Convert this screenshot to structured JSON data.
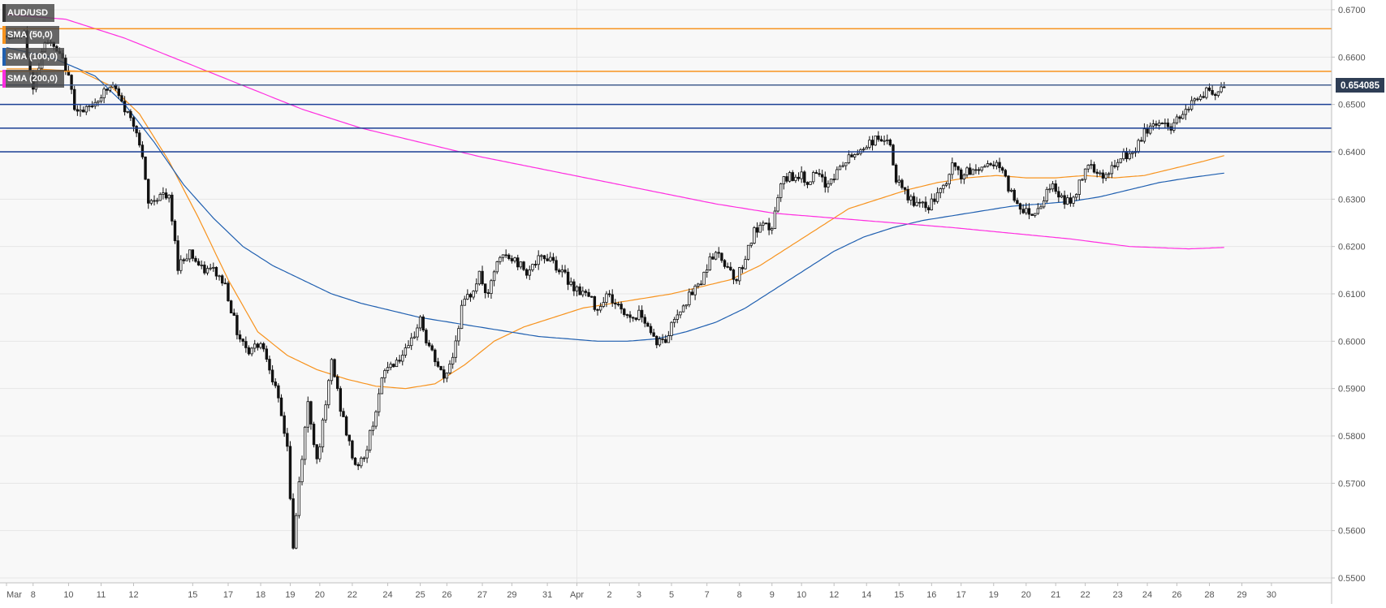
{
  "chart_data": {
    "type": "candlestick",
    "symbol": "AUD/USD",
    "indicators": [
      {
        "name": "SMA (50,0)",
        "color": "#f7931e"
      },
      {
        "name": "SMA (100,0)",
        "color": "#1f5fb0"
      },
      {
        "name": "SMA (200,0)",
        "color": "#ff2de0"
      }
    ],
    "last_price": "0.654085",
    "ylim": [
      0.55,
      0.67
    ],
    "y_ticks": [
      "0.6700",
      "0.6600",
      "0.6500",
      "0.6400",
      "0.6300",
      "0.6200",
      "0.6100",
      "0.6000",
      "0.5900",
      "0.5800",
      "0.5700",
      "0.5600",
      "0.5500"
    ],
    "x_ticks": [
      {
        "label": "Mar",
        "bar": 0
      },
      {
        "label": "8",
        "bar": 9
      },
      {
        "label": "10",
        "bar": 21
      },
      {
        "label": "11",
        "bar": 32
      },
      {
        "label": "12",
        "bar": 43
      },
      {
        "label": "15",
        "bar": 63
      },
      {
        "label": "17",
        "bar": 75
      },
      {
        "label": "18",
        "bar": 86
      },
      {
        "label": "19",
        "bar": 96
      },
      {
        "label": "20",
        "bar": 106
      },
      {
        "label": "22",
        "bar": 117
      },
      {
        "label": "24",
        "bar": 129
      },
      {
        "label": "25",
        "bar": 140
      },
      {
        "label": "26",
        "bar": 149
      },
      {
        "label": "27",
        "bar": 161
      },
      {
        "label": "29",
        "bar": 171
      },
      {
        "label": "31",
        "bar": 183
      },
      {
        "label": "Apr",
        "bar": 193
      },
      {
        "label": "2",
        "bar": 204
      },
      {
        "label": "3",
        "bar": 214
      },
      {
        "label": "5",
        "bar": 225
      },
      {
        "label": "7",
        "bar": 237
      },
      {
        "label": "8",
        "bar": 248
      },
      {
        "label": "9",
        "bar": 259
      },
      {
        "label": "10",
        "bar": 269
      },
      {
        "label": "12",
        "bar": 280
      },
      {
        "label": "14",
        "bar": 291
      },
      {
        "label": "15",
        "bar": 302
      },
      {
        "label": "16",
        "bar": 313
      },
      {
        "label": "17",
        "bar": 323
      },
      {
        "label": "19",
        "bar": 334
      },
      {
        "label": "20",
        "bar": 345
      },
      {
        "label": "21",
        "bar": 355
      },
      {
        "label": "22",
        "bar": 365
      },
      {
        "label": "23",
        "bar": 376
      },
      {
        "label": "24",
        "bar": 386
      },
      {
        "label": "26",
        "bar": 396
      },
      {
        "label": "28",
        "bar": 407
      },
      {
        "label": "29",
        "bar": 418
      },
      {
        "label": "30",
        "bar": 428
      }
    ],
    "horizontal_levels": [
      {
        "value": 0.666,
        "color": "#f7931e"
      },
      {
        "value": 0.657,
        "color": "#f7931e"
      },
      {
        "value": 0.6541,
        "color": "#44608f"
      },
      {
        "value": 0.65,
        "color": "#1a3f94"
      },
      {
        "value": 0.645,
        "color": "#1a3f94"
      },
      {
        "value": 0.64,
        "color": "#1a3f94"
      }
    ],
    "anchors": {
      "close": [
        [
          0,
          0.6645
        ],
        [
          6,
          0.6645
        ],
        [
          9,
          0.653
        ],
        [
          13,
          0.664
        ],
        [
          17,
          0.661
        ],
        [
          20,
          0.658
        ],
        [
          23,
          0.65
        ],
        [
          26,
          0.648
        ],
        [
          32,
          0.652
        ],
        [
          36,
          0.654
        ],
        [
          40,
          0.649
        ],
        [
          44,
          0.645
        ],
        [
          46,
          0.638
        ],
        [
          48,
          0.629
        ],
        [
          52,
          0.631
        ],
        [
          55,
          0.63
        ],
        [
          58,
          0.616
        ],
        [
          62,
          0.619
        ],
        [
          66,
          0.615
        ],
        [
          70,
          0.615
        ],
        [
          74,
          0.612
        ],
        [
          78,
          0.602
        ],
        [
          82,
          0.598
        ],
        [
          86,
          0.6
        ],
        [
          89,
          0.595
        ],
        [
          92,
          0.587
        ],
        [
          95,
          0.578
        ],
        [
          97,
          0.556
        ],
        [
          99,
          0.57
        ],
        [
          102,
          0.587
        ],
        [
          105,
          0.575
        ],
        [
          108,
          0.586
        ],
        [
          110,
          0.596
        ],
        [
          113,
          0.586
        ],
        [
          116,
          0.578
        ],
        [
          118,
          0.574
        ],
        [
          121,
          0.575
        ],
        [
          124,
          0.583
        ],
        [
          128,
          0.594
        ],
        [
          132,
          0.596
        ],
        [
          136,
          0.598
        ],
        [
          140,
          0.605
        ],
        [
          142,
          0.6
        ],
        [
          145,
          0.596
        ],
        [
          148,
          0.592
        ],
        [
          151,
          0.597
        ],
        [
          154,
          0.607
        ],
        [
          157,
          0.61
        ],
        [
          160,
          0.614
        ],
        [
          163,
          0.609
        ],
        [
          165,
          0.615
        ],
        [
          168,
          0.618
        ],
        [
          172,
          0.617
        ],
        [
          176,
          0.615
        ],
        [
          180,
          0.617
        ],
        [
          184,
          0.618
        ],
        [
          187,
          0.615
        ],
        [
          190,
          0.613
        ],
        [
          193,
          0.611
        ],
        [
          196,
          0.61
        ],
        [
          200,
          0.607
        ],
        [
          203,
          0.61
        ],
        [
          206,
          0.608
        ],
        [
          209,
          0.606
        ],
        [
          212,
          0.605
        ],
        [
          215,
          0.606
        ],
        [
          218,
          0.602
        ],
        [
          220,
          0.6
        ],
        [
          223,
          0.6
        ],
        [
          226,
          0.605
        ],
        [
          229,
          0.608
        ],
        [
          232,
          0.61
        ],
        [
          234,
          0.612
        ],
        [
          236,
          0.614
        ],
        [
          238,
          0.618
        ],
        [
          241,
          0.618
        ],
        [
          244,
          0.616
        ],
        [
          247,
          0.613
        ],
        [
          250,
          0.618
        ],
        [
          253,
          0.623
        ],
        [
          256,
          0.624
        ],
        [
          259,
          0.624
        ],
        [
          262,
          0.633
        ],
        [
          265,
          0.635
        ],
        [
          268,
          0.635
        ],
        [
          271,
          0.634
        ],
        [
          274,
          0.635
        ],
        [
          277,
          0.633
        ],
        [
          280,
          0.635
        ],
        [
          284,
          0.638
        ],
        [
          288,
          0.64
        ],
        [
          292,
          0.642
        ],
        [
          296,
          0.643
        ],
        [
          299,
          0.641
        ],
        [
          301,
          0.634
        ],
        [
          304,
          0.631
        ],
        [
          308,
          0.629
        ],
        [
          311,
          0.628
        ],
        [
          314,
          0.63
        ],
        [
          317,
          0.632
        ],
        [
          320,
          0.637
        ],
        [
          323,
          0.635
        ],
        [
          327,
          0.636
        ],
        [
          331,
          0.637
        ],
        [
          335,
          0.638
        ],
        [
          338,
          0.634
        ],
        [
          341,
          0.63
        ],
        [
          344,
          0.628
        ],
        [
          347,
          0.627
        ],
        [
          350,
          0.629
        ],
        [
          353,
          0.633
        ],
        [
          356,
          0.631
        ],
        [
          360,
          0.629
        ],
        [
          363,
          0.633
        ],
        [
          366,
          0.638
        ],
        [
          369,
          0.636
        ],
        [
          372,
          0.635
        ],
        [
          375,
          0.637
        ],
        [
          378,
          0.639
        ],
        [
          382,
          0.64
        ],
        [
          385,
          0.644
        ],
        [
          388,
          0.646
        ],
        [
          391,
          0.646
        ],
        [
          394,
          0.645
        ],
        [
          397,
          0.648
        ],
        [
          400,
          0.65
        ],
        [
          403,
          0.651
        ],
        [
          406,
          0.653
        ],
        [
          409,
          0.651
        ],
        [
          412,
          0.6541
        ]
      ],
      "sma50": [
        [
          0,
          0.6575
        ],
        [
          10,
          0.6575
        ],
        [
          25,
          0.657
        ],
        [
          35,
          0.654
        ],
        [
          45,
          0.648
        ],
        [
          55,
          0.638
        ],
        [
          65,
          0.626
        ],
        [
          75,
          0.613
        ],
        [
          85,
          0.602
        ],
        [
          95,
          0.597
        ],
        [
          105,
          0.594
        ],
        [
          115,
          0.592
        ],
        [
          125,
          0.5905
        ],
        [
          135,
          0.59
        ],
        [
          145,
          0.591
        ],
        [
          155,
          0.595
        ],
        [
          165,
          0.6
        ],
        [
          175,
          0.603
        ],
        [
          185,
          0.605
        ],
        [
          195,
          0.607
        ],
        [
          205,
          0.608
        ],
        [
          215,
          0.609
        ],
        [
          225,
          0.61
        ],
        [
          235,
          0.6115
        ],
        [
          245,
          0.613
        ],
        [
          255,
          0.616
        ],
        [
          265,
          0.62
        ],
        [
          275,
          0.624
        ],
        [
          285,
          0.628
        ],
        [
          295,
          0.63
        ],
        [
          305,
          0.632
        ],
        [
          315,
          0.6335
        ],
        [
          325,
          0.6345
        ],
        [
          335,
          0.635
        ],
        [
          345,
          0.6345
        ],
        [
          355,
          0.6345
        ],
        [
          365,
          0.635
        ],
        [
          375,
          0.6345
        ],
        [
          385,
          0.635
        ],
        [
          395,
          0.6365
        ],
        [
          405,
          0.638
        ],
        [
          412,
          0.6392
        ]
      ],
      "sma100": [
        [
          0,
          0.662
        ],
        [
          15,
          0.66
        ],
        [
          30,
          0.656
        ],
        [
          40,
          0.65
        ],
        [
          50,
          0.642
        ],
        [
          60,
          0.633
        ],
        [
          70,
          0.626
        ],
        [
          80,
          0.62
        ],
        [
          90,
          0.616
        ],
        [
          100,
          0.613
        ],
        [
          110,
          0.61
        ],
        [
          120,
          0.608
        ],
        [
          130,
          0.6065
        ],
        [
          140,
          0.605
        ],
        [
          150,
          0.604
        ],
        [
          160,
          0.603
        ],
        [
          170,
          0.602
        ],
        [
          180,
          0.601
        ],
        [
          190,
          0.6005
        ],
        [
          200,
          0.6
        ],
        [
          210,
          0.6
        ],
        [
          220,
          0.6005
        ],
        [
          230,
          0.602
        ],
        [
          240,
          0.604
        ],
        [
          250,
          0.607
        ],
        [
          260,
          0.611
        ],
        [
          270,
          0.615
        ],
        [
          280,
          0.619
        ],
        [
          290,
          0.622
        ],
        [
          300,
          0.624
        ],
        [
          310,
          0.6255
        ],
        [
          320,
          0.6265
        ],
        [
          330,
          0.6275
        ],
        [
          340,
          0.6285
        ],
        [
          350,
          0.629
        ],
        [
          360,
          0.6295
        ],
        [
          370,
          0.6305
        ],
        [
          380,
          0.632
        ],
        [
          390,
          0.6335
        ],
        [
          400,
          0.6345
        ],
        [
          412,
          0.6355
        ]
      ],
      "sma200": [
        [
          0,
          0.669
        ],
        [
          20,
          0.668
        ],
        [
          40,
          0.664
        ],
        [
          60,
          0.659
        ],
        [
          80,
          0.654
        ],
        [
          100,
          0.649
        ],
        [
          120,
          0.645
        ],
        [
          140,
          0.642
        ],
        [
          160,
          0.639
        ],
        [
          180,
          0.6365
        ],
        [
          200,
          0.634
        ],
        [
          220,
          0.6315
        ],
        [
          240,
          0.629
        ],
        [
          260,
          0.627
        ],
        [
          280,
          0.626
        ],
        [
          300,
          0.625
        ],
        [
          320,
          0.624
        ],
        [
          340,
          0.6228
        ],
        [
          360,
          0.6216
        ],
        [
          380,
          0.62
        ],
        [
          400,
          0.6195
        ],
        [
          412,
          0.6198
        ]
      ]
    }
  }
}
